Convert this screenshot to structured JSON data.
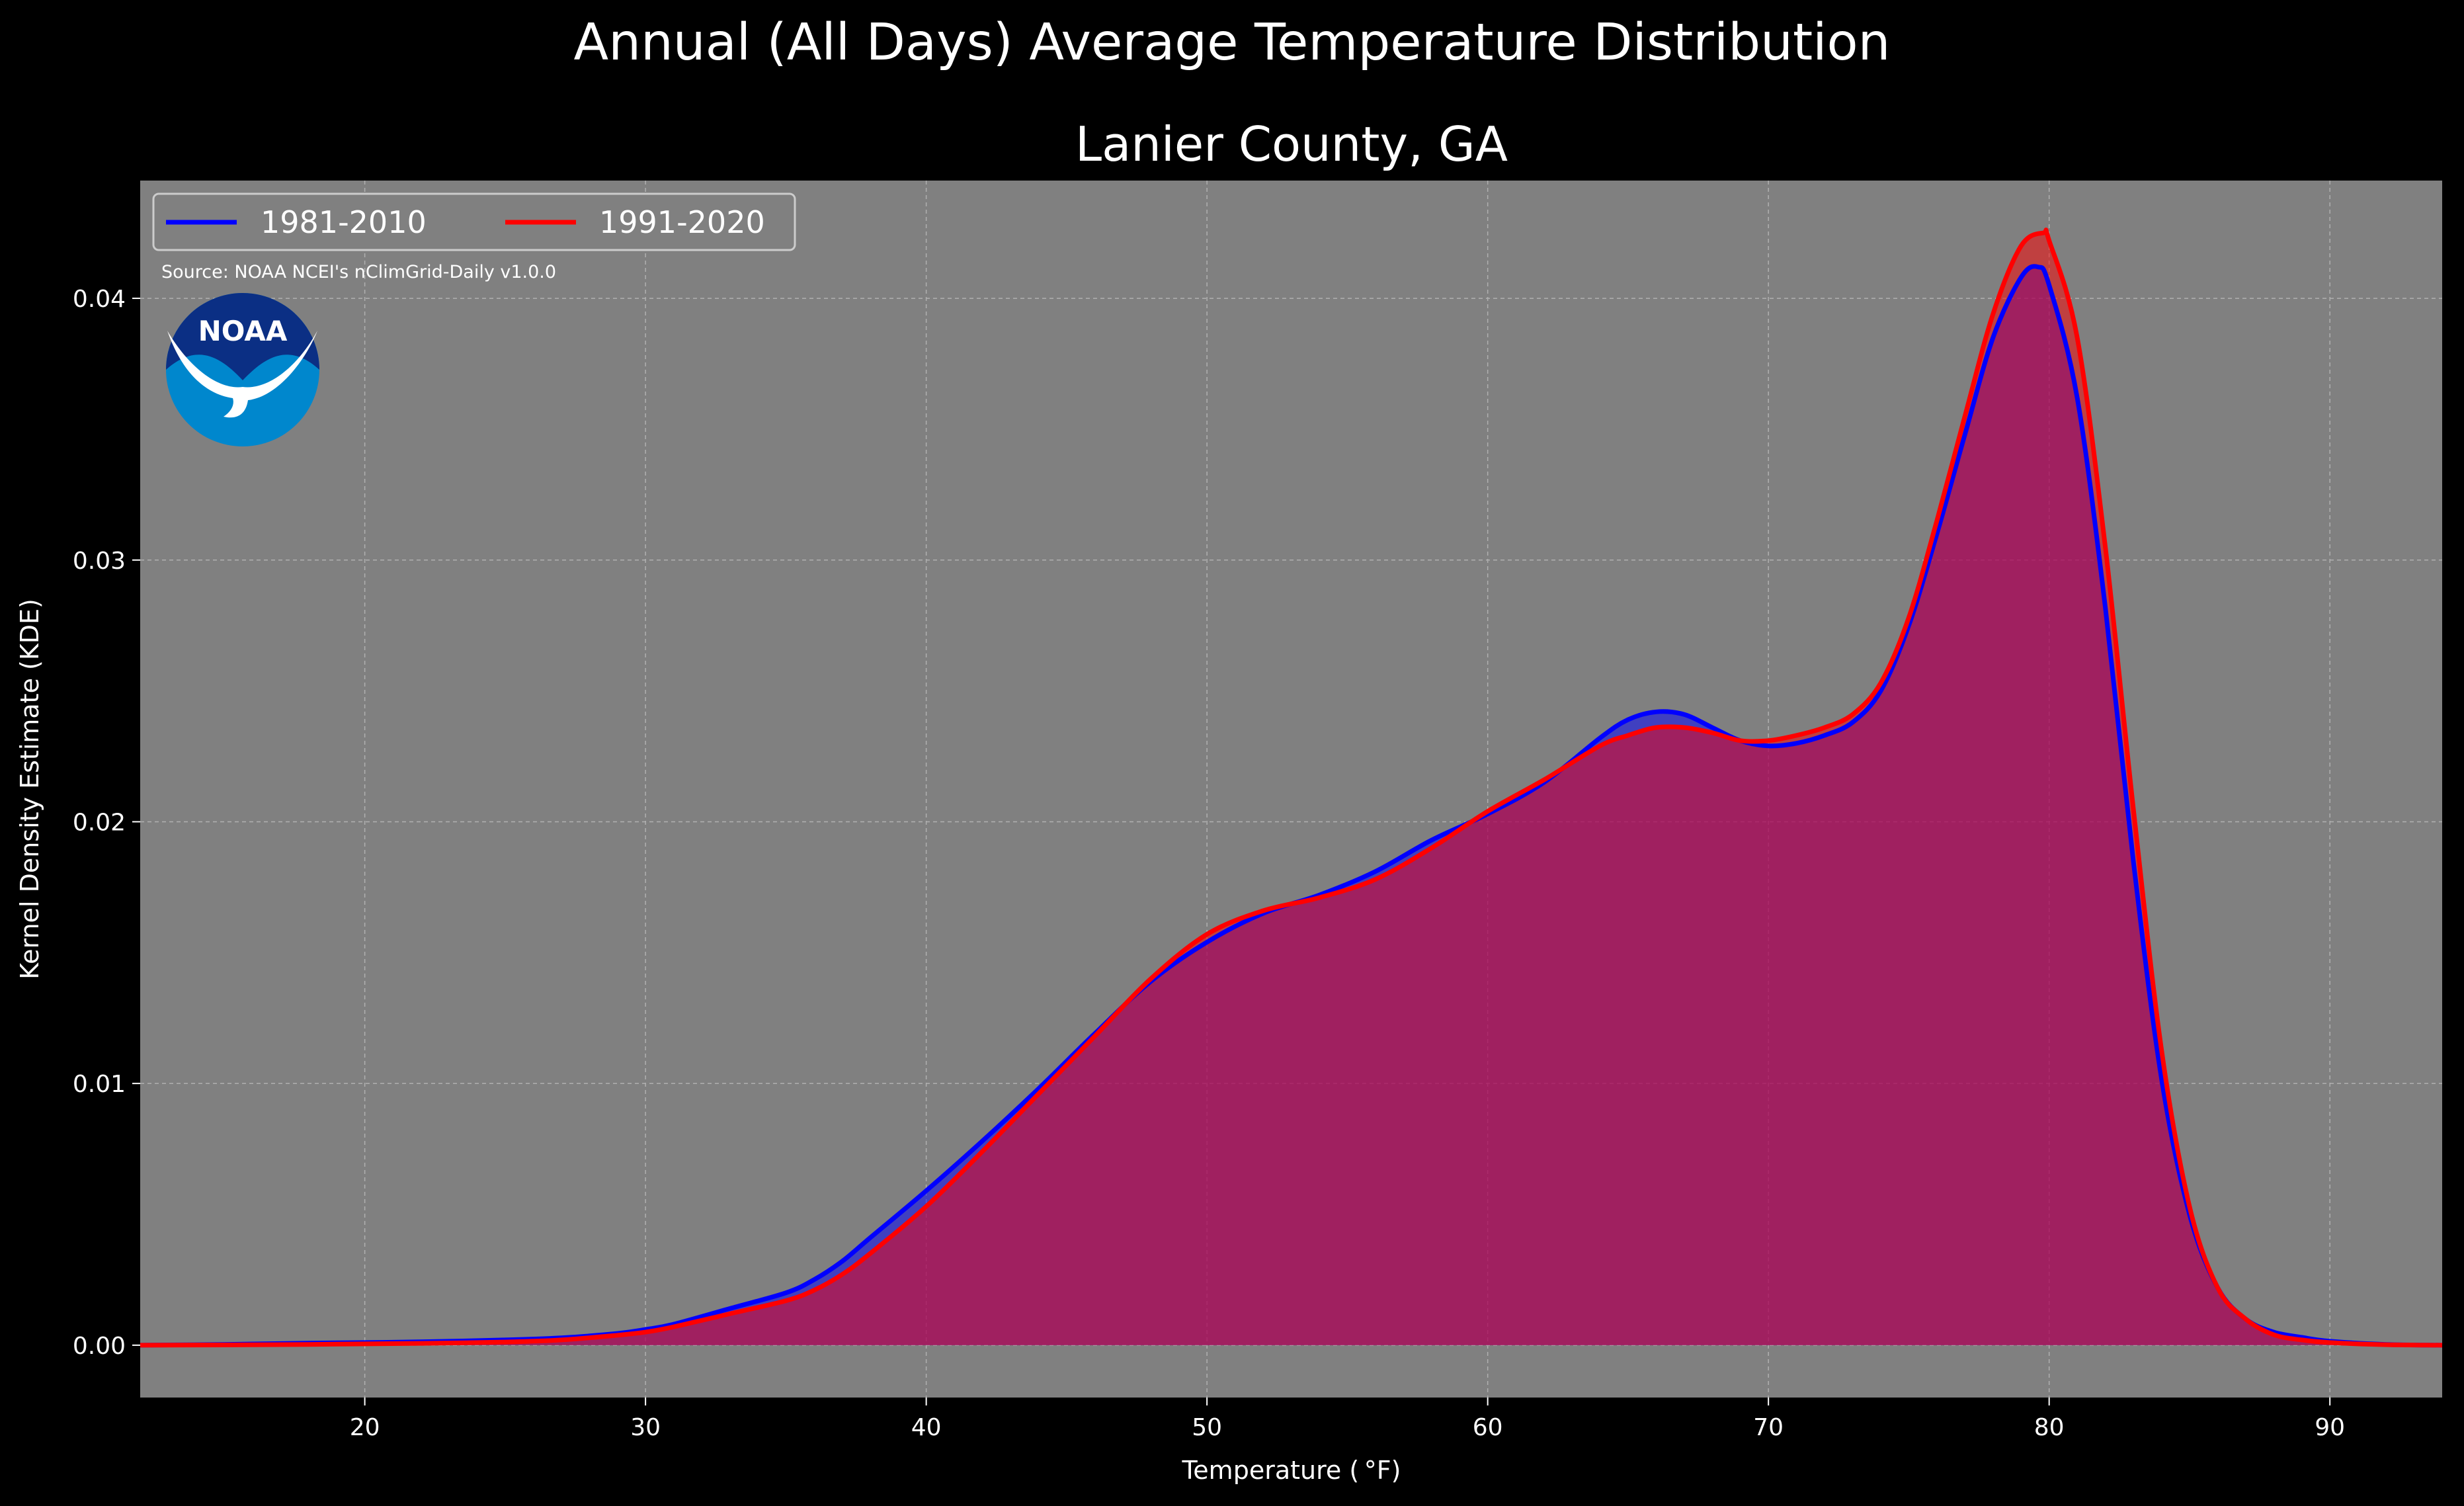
{
  "chart_data": {
    "type": "area",
    "title": "Annual (All Days) Average Temperature Distribution",
    "subtitle": "Lanier County, GA",
    "xlabel": "Temperature ($^\\circ$F)",
    "xlabel_display": "Temperature ( °F)",
    "ylabel": "Kernel Density Estimate (KDE)",
    "xlim": [
      12,
      94
    ],
    "ylim": [
      -0.002,
      0.0445
    ],
    "xticks": [
      20,
      30,
      40,
      50,
      60,
      70,
      80,
      90
    ],
    "yticks": [
      0.0,
      0.01,
      0.02,
      0.03,
      0.04
    ],
    "ytick_labels": [
      "0.00",
      "0.01",
      "0.02",
      "0.03",
      "0.04"
    ],
    "grid": true,
    "legend_position": "top-left",
    "annotation": "Source: NOAA NCEI's nClimGrid-Daily v1.0.0",
    "logo_text": "NOAA",
    "plot_background": "#808080",
    "figure_background": "#000000",
    "series": [
      {
        "name": "1981-2010",
        "color": "#0000ff",
        "fill": "#0000ff",
        "x": [
          12,
          15,
          18,
          20,
          22,
          25,
          27,
          29,
          30,
          31,
          33,
          35,
          36,
          37,
          38,
          40,
          42,
          44,
          46,
          48,
          50,
          52,
          54,
          56,
          58,
          60,
          62,
          64,
          65,
          66,
          67,
          68,
          69,
          70,
          71,
          72,
          73,
          74,
          75,
          76,
          77,
          78,
          79,
          79.6,
          80,
          81,
          82,
          83,
          84,
          85,
          86,
          87,
          88,
          89,
          90,
          92,
          94
        ],
        "y": [
          0.0,
          3e-05,
          8e-05,
          0.0001,
          0.00013,
          0.0002,
          0.00028,
          0.00045,
          0.0006,
          0.0008,
          0.0014,
          0.002,
          0.0025,
          0.0032,
          0.0041,
          0.0059,
          0.0078,
          0.0098,
          0.0119,
          0.0139,
          0.0154,
          0.0165,
          0.0172,
          0.0181,
          0.0193,
          0.0203,
          0.0215,
          0.0232,
          0.0239,
          0.0242,
          0.0241,
          0.0236,
          0.0231,
          0.0229,
          0.023,
          0.0233,
          0.0238,
          0.025,
          0.0275,
          0.031,
          0.0348,
          0.0385,
          0.0408,
          0.0412,
          0.0405,
          0.0362,
          0.0282,
          0.0185,
          0.0102,
          0.005,
          0.0022,
          0.001,
          0.0005,
          0.0003,
          0.00015,
          3e-05,
          0.0
        ]
      },
      {
        "name": "1991-2020",
        "color": "#ff0000",
        "fill": "#ff0000",
        "x": [
          12,
          15,
          18,
          20,
          22,
          25,
          27,
          29,
          30,
          31,
          33,
          35,
          36,
          37,
          38,
          40,
          42,
          44,
          46,
          48,
          50,
          52,
          54,
          56,
          58,
          60,
          62,
          64,
          65,
          66,
          67,
          68,
          69,
          70,
          71,
          72,
          73,
          74,
          75,
          76,
          77,
          78,
          79,
          79.8,
          80,
          81,
          82,
          83,
          84,
          85,
          86,
          87,
          88,
          89,
          90,
          92,
          94
        ],
        "y": [
          0.0,
          1e-05,
          3e-05,
          5e-05,
          7e-05,
          0.00012,
          0.0002,
          0.00038,
          0.0005,
          0.0007,
          0.0012,
          0.0017,
          0.0021,
          0.0027,
          0.0035,
          0.0053,
          0.0074,
          0.0096,
          0.0118,
          0.014,
          0.0157,
          0.0166,
          0.0171,
          0.0178,
          0.019,
          0.0204,
          0.0216,
          0.0229,
          0.0233,
          0.0236,
          0.0236,
          0.0234,
          0.0231,
          0.0231,
          0.0233,
          0.0236,
          0.0241,
          0.0253,
          0.0278,
          0.0315,
          0.0355,
          0.0394,
          0.042,
          0.0425,
          0.0422,
          0.0385,
          0.0305,
          0.0205,
          0.0113,
          0.0053,
          0.0022,
          0.001,
          0.0004,
          0.0002,
          0.0001,
          2e-05,
          0.0
        ]
      }
    ]
  }
}
